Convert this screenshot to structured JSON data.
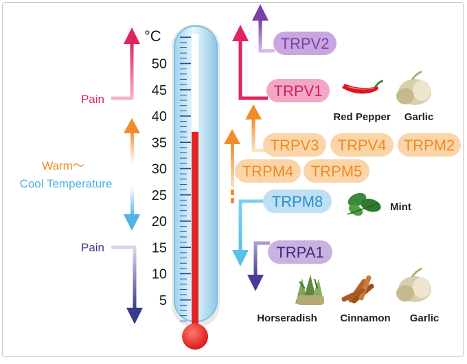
{
  "unit": "°C",
  "scale_ticks": [
    "50",
    "45",
    "40",
    "35",
    "30",
    "25",
    "20",
    "15",
    "10",
    "5"
  ],
  "thermometer_reading": 37,
  "left_labels": {
    "pain_hot": "Pain",
    "warm": "Warm～",
    "cool": "Cool Temperature",
    "pain_cold": "Pain"
  },
  "channels": {
    "trpv2": "TRPV2",
    "trpv1": "TRPV1",
    "trpv3": "TRPV3",
    "trpv4": "TRPV4",
    "trpm2": "TRPM2",
    "trpm4": "TRPM4",
    "trpm5": "TRPM5",
    "trpm8": "TRPM8",
    "trpa1": "TRPA1"
  },
  "sources": {
    "red_pepper": "Red Pepper",
    "garlic_top": "Garlic",
    "mint": "Mint",
    "horseradish": "Horseradish",
    "cinnamon": "Cinnamon",
    "garlic_bottom": "Garlic"
  },
  "colors": {
    "pain_hot": "#e0245e",
    "warm": "#f28c28",
    "cool": "#4fb3e3",
    "pain_cold": "#3a3a8c",
    "trpv2_fill": "#c9a6df",
    "trpv2_text": "#7b3fa6",
    "trpv1_fill": "#f2a7c6",
    "trpv1_text": "#d11e63",
    "warm_fill": "#fbd5aa",
    "warm_text": "#f08a1c",
    "trpm8_fill": "#bfe0f4",
    "trpm8_text": "#2b8fcc",
    "trpa1_fill": "#c9b2e0",
    "trpa1_text": "#3d2d80",
    "mercury": "#e02424"
  }
}
